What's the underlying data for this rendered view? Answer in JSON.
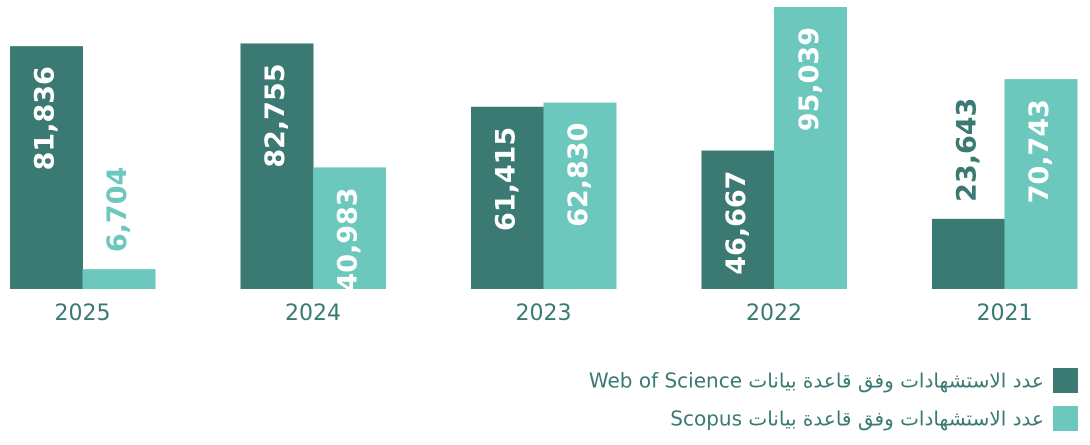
{
  "chart_data": {
    "type": "bar",
    "categories": [
      "2025",
      "2024",
      "2023",
      "2022",
      "2021"
    ],
    "series": [
      {
        "name": "عدد الاستشهادات وفق قاعدة بيانات Web of Science",
        "color": "#3a7a72",
        "values": [
          81836,
          82755,
          61415,
          46667,
          23643
        ],
        "value_labels": [
          "81,836",
          "82,755",
          "61,415",
          "46,667",
          "23,643"
        ]
      },
      {
        "name": "عدد الاستشهادات وفق قاعدة بيانات Scopus",
        "color": "#6cc8bd",
        "values": [
          6704,
          40983,
          62830,
          95039,
          70743
        ],
        "value_labels": [
          "6,704",
          "40,983",
          "62,830",
          "95,039",
          "70,743"
        ]
      }
    ],
    "legend": "bottom-right"
  }
}
